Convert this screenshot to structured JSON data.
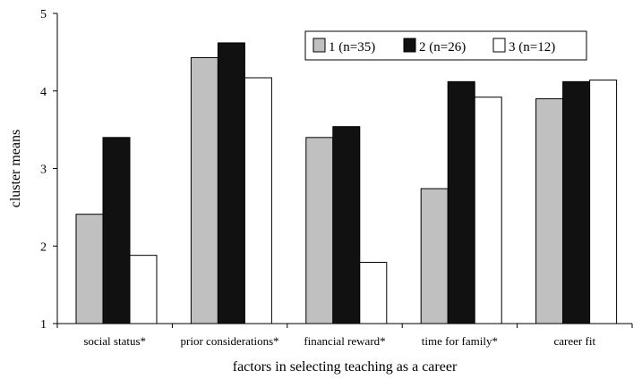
{
  "chart_data": {
    "type": "bar",
    "title": "",
    "xlabel": "factors in selecting teaching as a career",
    "ylabel": "cluster means",
    "ylim": [
      1,
      5
    ],
    "yticks": [
      "1",
      "2",
      "3",
      "4",
      "5"
    ],
    "grid": false,
    "legend_position": "top-right",
    "categories": [
      "social status*",
      "prior considerations*",
      "financial reward*",
      "time for family*",
      "career fit"
    ],
    "series": [
      {
        "name": "1 (n=35)",
        "color": "#c0c0c0",
        "values": [
          2.41,
          4.43,
          3.4,
          2.74,
          3.9
        ]
      },
      {
        "name": "2 (n=26)",
        "color": "#111111",
        "values": [
          3.4,
          4.62,
          3.54,
          4.12,
          4.12
        ]
      },
      {
        "name": "3 (n=12)",
        "color": "#ffffff",
        "values": [
          1.88,
          4.17,
          1.79,
          3.92,
          4.14
        ]
      }
    ]
  }
}
